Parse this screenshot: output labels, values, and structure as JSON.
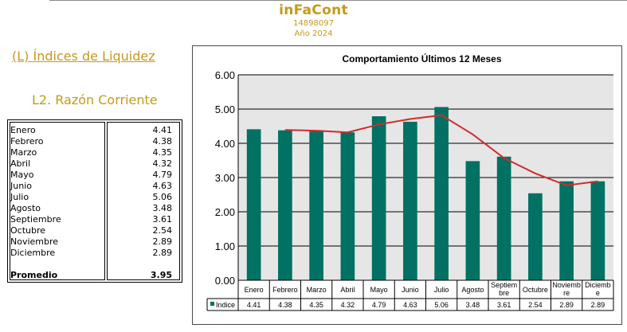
{
  "header": {
    "brand": "inFaCont",
    "id": "14898097",
    "year": "Año 2024"
  },
  "section": {
    "title": "(L) Índices de Liquidez",
    "subtitle": "L2. Razón Corriente"
  },
  "table": {
    "rows": [
      {
        "month": "Enero",
        "value": "4.41"
      },
      {
        "month": "Febrero",
        "value": "4.38"
      },
      {
        "month": "Marzo",
        "value": "4.35"
      },
      {
        "month": "Abril",
        "value": "4.32"
      },
      {
        "month": "Mayo",
        "value": "4.79"
      },
      {
        "month": "Junio",
        "value": "4.63"
      },
      {
        "month": "Julio",
        "value": "5.06"
      },
      {
        "month": "Agosto",
        "value": "3.48"
      },
      {
        "month": "Septiembre",
        "value": "3.61"
      },
      {
        "month": "Octubre",
        "value": "2.54"
      },
      {
        "month": "Noviembre",
        "value": "2.89"
      },
      {
        "month": "Diciembre",
        "value": "2.89"
      }
    ],
    "average_label": "Promedio",
    "average_value": "3.95"
  },
  "chart_data": {
    "type": "bar",
    "title": "Comportamiento Últimos 12 Meses",
    "categories": [
      [
        "Enero"
      ],
      [
        "Febrero"
      ],
      [
        "Marzo"
      ],
      [
        "Abril"
      ],
      [
        "Mayo"
      ],
      [
        "Junio"
      ],
      [
        "Julio"
      ],
      [
        "Agosto"
      ],
      [
        "Septiem",
        "bre"
      ],
      [
        "Octubre"
      ],
      [
        "Noviemb",
        "re"
      ],
      [
        "Diciemb",
        "e"
      ]
    ],
    "series": [
      {
        "name": "Indice",
        "values": [
          4.41,
          4.38,
          4.35,
          4.32,
          4.79,
          4.63,
          5.06,
          3.48,
          3.61,
          2.54,
          2.89,
          2.89
        ]
      }
    ],
    "trendline": [
      4.39,
      4.37,
      4.32,
      4.55,
      4.71,
      4.82,
      4.26,
      3.57,
      3.12,
      2.77,
      2.89
    ],
    "y_ticks": [
      "0.00",
      "1.00",
      "2.00",
      "3.00",
      "4.00",
      "5.00",
      "6.00"
    ],
    "ylim": [
      0,
      6
    ],
    "grid": true,
    "legend": "data-table",
    "colors": {
      "bar": "#007162",
      "trend": "#d42a2a",
      "plot_bg": "#e6e6e6"
    }
  }
}
